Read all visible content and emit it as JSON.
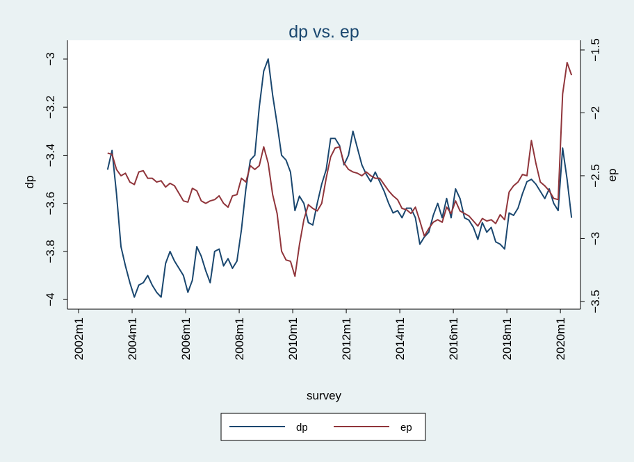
{
  "chart_data": {
    "type": "line",
    "title": "dp vs. ep",
    "xlabel": "survey",
    "ylabel": "dp",
    "y2label": "ep",
    "x": [
      "2003m2",
      "2003m4",
      "2003m6",
      "2003m8",
      "2003m10",
      "2003m12",
      "2004m2",
      "2004m4",
      "2004m6",
      "2004m8",
      "2004m10",
      "2004m12",
      "2005m2",
      "2005m4",
      "2005m6",
      "2005m8",
      "2005m10",
      "2005m12",
      "2006m2",
      "2006m4",
      "2006m6",
      "2006m8",
      "2006m10",
      "2006m12",
      "2007m2",
      "2007m4",
      "2007m6",
      "2007m8",
      "2007m10",
      "2007m12",
      "2008m2",
      "2008m4",
      "2008m6",
      "2008m8",
      "2008m10",
      "2008m12",
      "2009m2",
      "2009m4",
      "2009m6",
      "2009m8",
      "2009m10",
      "2009m12",
      "2010m2",
      "2010m4",
      "2010m6",
      "2010m8",
      "2010m10",
      "2010m12",
      "2011m2",
      "2011m4",
      "2011m6",
      "2011m8",
      "2011m10",
      "2011m12",
      "2012m2",
      "2012m4",
      "2012m6",
      "2012m8",
      "2012m10",
      "2012m12",
      "2013m2",
      "2013m4",
      "2013m6",
      "2013m8",
      "2013m10",
      "2013m12",
      "2014m2",
      "2014m4",
      "2014m6",
      "2014m8",
      "2014m10",
      "2014m12",
      "2015m2",
      "2015m4",
      "2015m6",
      "2015m8",
      "2015m10",
      "2015m12",
      "2016m2",
      "2016m4",
      "2016m6",
      "2016m8",
      "2016m10",
      "2016m12",
      "2017m2",
      "2017m4",
      "2017m6",
      "2017m8",
      "2017m10",
      "2017m12",
      "2018m2",
      "2018m4",
      "2018m6",
      "2018m8",
      "2018m10",
      "2018m12",
      "2019m2",
      "2019m4",
      "2019m6",
      "2019m8",
      "2019m10",
      "2019m12",
      "2020m2",
      "2020m4",
      "2020m6"
    ],
    "series": [
      {
        "name": "dp",
        "color": "#1a476f",
        "axis": "y",
        "values": [
          -3.46,
          -3.38,
          -3.56,
          -3.78,
          -3.86,
          -3.93,
          -3.99,
          -3.94,
          -3.93,
          -3.9,
          -3.94,
          -3.97,
          -3.99,
          -3.85,
          -3.8,
          -3.84,
          -3.87,
          -3.9,
          -3.97,
          -3.92,
          -3.78,
          -3.82,
          -3.88,
          -3.93,
          -3.8,
          -3.79,
          -3.86,
          -3.83,
          -3.87,
          -3.84,
          -3.71,
          -3.54,
          -3.42,
          -3.4,
          -3.2,
          -3.05,
          -3.0,
          -3.15,
          -3.27,
          -3.4,
          -3.42,
          -3.47,
          -3.63,
          -3.57,
          -3.6,
          -3.68,
          -3.69,
          -3.6,
          -3.52,
          -3.46,
          -3.33,
          -3.33,
          -3.36,
          -3.44,
          -3.4,
          -3.3,
          -3.37,
          -3.44,
          -3.48,
          -3.51,
          -3.47,
          -3.51,
          -3.55,
          -3.6,
          -3.64,
          -3.63,
          -3.66,
          -3.62,
          -3.62,
          -3.66,
          -3.77,
          -3.74,
          -3.72,
          -3.65,
          -3.6,
          -3.66,
          -3.58,
          -3.66,
          -3.54,
          -3.58,
          -3.66,
          -3.67,
          -3.7,
          -3.75,
          -3.68,
          -3.72,
          -3.7,
          -3.76,
          -3.77,
          -3.79,
          -3.64,
          -3.65,
          -3.62,
          -3.56,
          -3.51,
          -3.5,
          -3.52,
          -3.55,
          -3.58,
          -3.54,
          -3.6,
          -3.63,
          -3.37,
          -3.5,
          -3.66
        ]
      },
      {
        "name": "ep",
        "color": "#90353b",
        "axis": "y2",
        "values": [
          -2.32,
          -2.33,
          -2.45,
          -2.5,
          -2.48,
          -2.55,
          -2.57,
          -2.47,
          -2.46,
          -2.52,
          -2.52,
          -2.55,
          -2.54,
          -2.59,
          -2.56,
          -2.58,
          -2.64,
          -2.7,
          -2.71,
          -2.6,
          -2.62,
          -2.7,
          -2.72,
          -2.7,
          -2.69,
          -2.66,
          -2.72,
          -2.75,
          -2.66,
          -2.65,
          -2.52,
          -2.55,
          -2.42,
          -2.45,
          -2.42,
          -2.27,
          -2.4,
          -2.65,
          -2.8,
          -3.1,
          -3.17,
          -3.18,
          -3.3,
          -3.05,
          -2.85,
          -2.73,
          -2.76,
          -2.78,
          -2.72,
          -2.52,
          -2.35,
          -2.28,
          -2.27,
          -2.4,
          -2.45,
          -2.47,
          -2.48,
          -2.5,
          -2.47,
          -2.5,
          -2.52,
          -2.52,
          -2.57,
          -2.62,
          -2.66,
          -2.69,
          -2.76,
          -2.77,
          -2.8,
          -2.75,
          -2.86,
          -2.98,
          -2.92,
          -2.87,
          -2.85,
          -2.87,
          -2.75,
          -2.8,
          -2.7,
          -2.78,
          -2.8,
          -2.82,
          -2.86,
          -2.9,
          -2.84,
          -2.86,
          -2.85,
          -2.88,
          -2.81,
          -2.85,
          -2.63,
          -2.58,
          -2.55,
          -2.49,
          -2.5,
          -2.22,
          -2.4,
          -2.55,
          -2.58,
          -2.62,
          -2.68,
          -2.69,
          -1.85,
          -1.6,
          -1.7
        ]
      }
    ],
    "xlim": [
      "2001m8",
      "2020m10"
    ],
    "xticks": [
      "2002m1",
      "2004m1",
      "2006m1",
      "2008m1",
      "2010m1",
      "2012m1",
      "2014m1",
      "2016m1",
      "2018m1",
      "2020m1"
    ],
    "ylim": [
      -4.04,
      -2.922
    ],
    "yticks": [
      {
        "value": -4,
        "label": "−4"
      },
      {
        "value": -3.8,
        "label": "−3.8"
      },
      {
        "value": -3.6,
        "label": "−3.6"
      },
      {
        "value": -3.4,
        "label": "−3.4"
      },
      {
        "value": -3.2,
        "label": "−3.2"
      },
      {
        "value": -3,
        "label": "−3"
      }
    ],
    "y2lim": [
      -3.561,
      -1.423
    ],
    "y2ticks": [
      {
        "value": -3.5,
        "label": "−3.5"
      },
      {
        "value": -3,
        "label": "−3"
      },
      {
        "value": -2.5,
        "label": "−2.5"
      },
      {
        "value": -2,
        "label": "−2"
      },
      {
        "value": -1.5,
        "label": "−1.5"
      }
    ],
    "legend": "bottom"
  }
}
